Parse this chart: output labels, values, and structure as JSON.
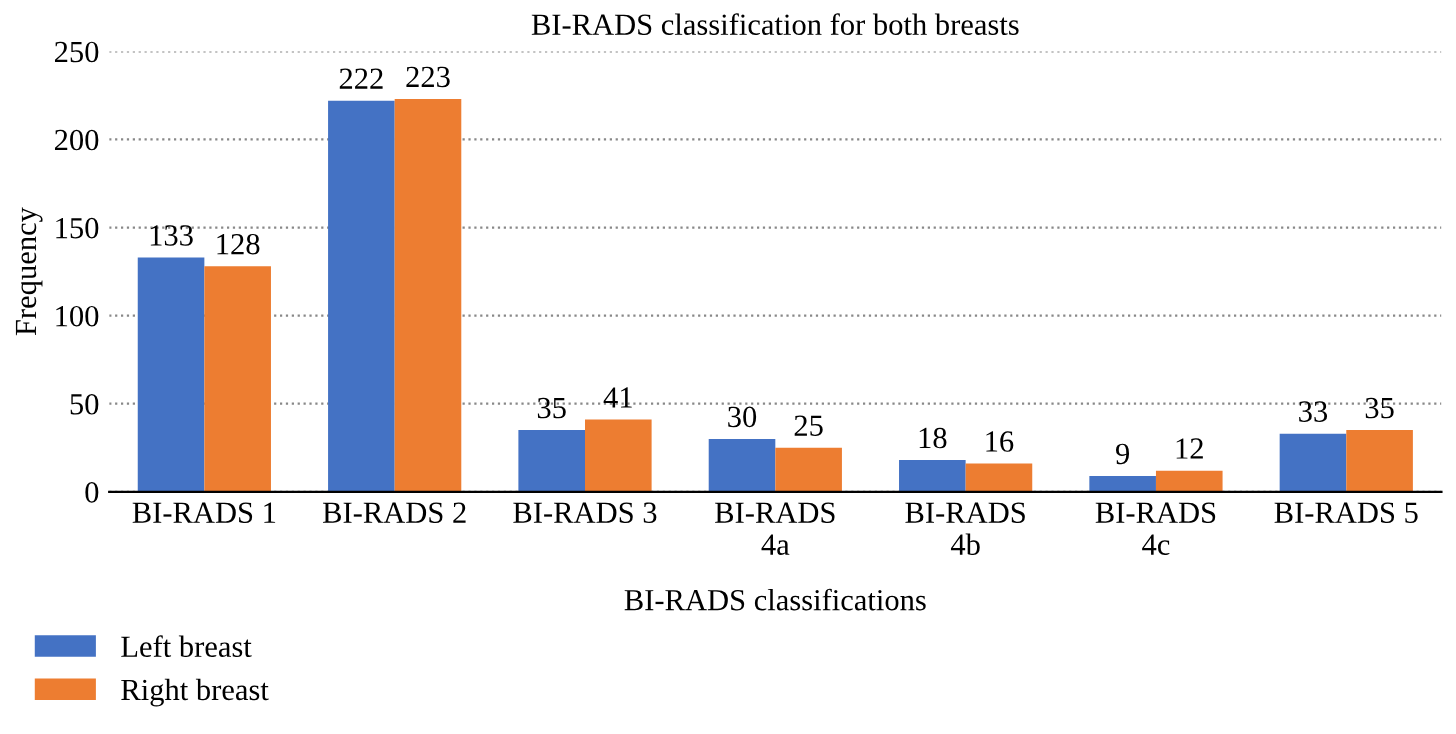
{
  "chart_data": {
    "type": "bar",
    "title": "BI-RADS classification for both breasts",
    "xlabel": "BI-RADS classifications",
    "ylabel": "Frequency",
    "categories": [
      "BI-RADS 1",
      "BI-RADS 2",
      "BI-RADS 3",
      "BI-RADS\n4a",
      "BI-RADS\n4b",
      "BI-RADS\n4c",
      "BI-RADS 5"
    ],
    "series": [
      {
        "name": "Left breast",
        "color": "#4472c4",
        "values": [
          133,
          222,
          35,
          30,
          18,
          9,
          33
        ]
      },
      {
        "name": "Right breast",
        "color": "#ed7d31",
        "values": [
          128,
          223,
          41,
          25,
          16,
          12,
          35
        ]
      }
    ],
    "ylim": [
      0,
      250
    ],
    "yticks": [
      0,
      50,
      100,
      150,
      200,
      250
    ],
    "grid": "y",
    "legend": "bottom left",
    "data_labels": true
  }
}
